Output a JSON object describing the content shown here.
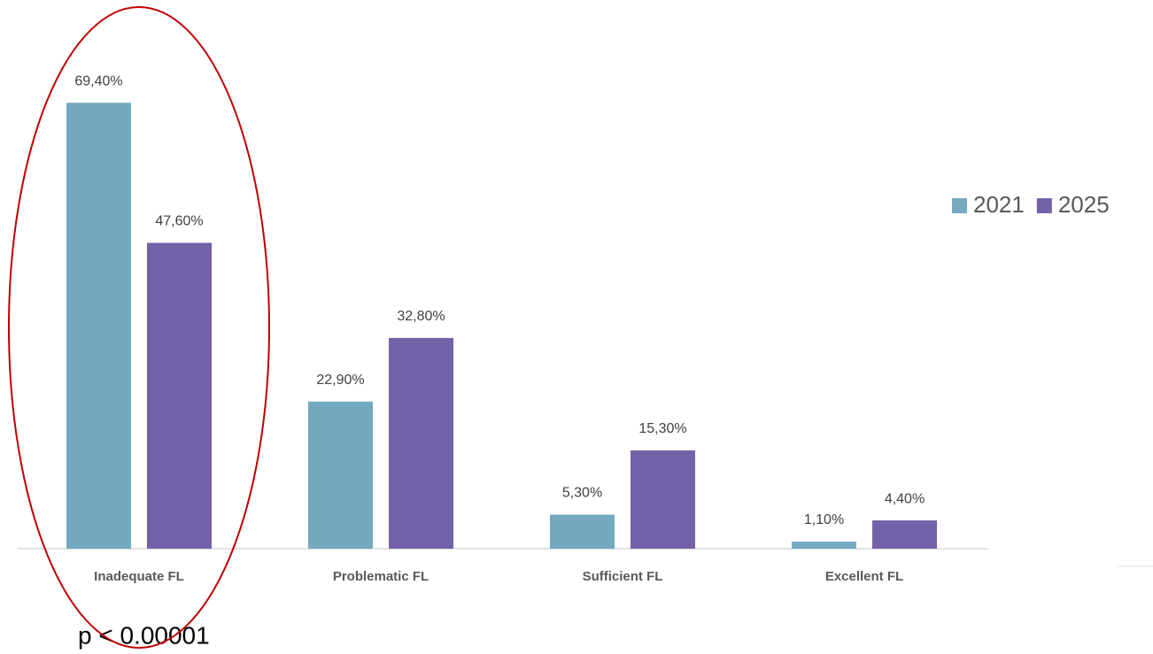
{
  "chart_data": {
    "type": "bar",
    "categories": [
      "Inadequate FL",
      "Problematic FL",
      "Sufficient FL",
      "Excellent FL"
    ],
    "series": [
      {
        "name": "2021",
        "color": "#74a9c0",
        "values": [
          69.4,
          22.9,
          5.3,
          1.1
        ],
        "value_labels": [
          "69,40%",
          "22,90%",
          "5,30%",
          "1,10%"
        ]
      },
      {
        "name": "2025",
        "color": "#7462a8",
        "values": [
          47.6,
          32.8,
          15.3,
          4.4
        ],
        "value_labels": [
          "47,60%",
          "32,80%",
          "15,30%",
          "4,40%"
        ]
      }
    ],
    "legend": "right",
    "annotation": "p < 0.00001"
  }
}
